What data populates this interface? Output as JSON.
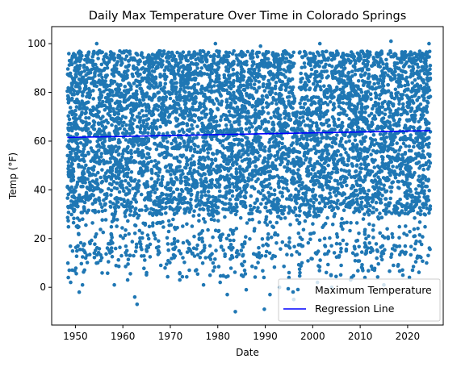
{
  "chart_data": {
    "type": "scatter",
    "title": "Daily Max Temperature Over Time in Colorado Springs",
    "xlabel": "Date",
    "ylabel": "Temp (°F)",
    "xlim": [
      1945,
      2027.5
    ],
    "ylim": [
      -15.5,
      107
    ],
    "x_ticks": [
      1950,
      1960,
      1970,
      1980,
      1990,
      2000,
      2010,
      2020
    ],
    "y_ticks": [
      0,
      20,
      40,
      60,
      80,
      100
    ],
    "grid": false,
    "legend_position": "lower-right",
    "series": [
      {
        "name": "Maximum Temperature",
        "kind": "scatter",
        "color": "#1f77b4",
        "x_range": [
          1948.3,
          2024.8
        ],
        "dense_band": [
          30,
          97
        ],
        "summary": "Daily observations, dense between ~30°F and ~97°F, sparse outliers down to about -10°F and up to about 101°F",
        "outliers": [
          [
            1948.5,
            4
          ],
          [
            1949.0,
            2
          ],
          [
            1950.8,
            -2
          ],
          [
            1951.5,
            1
          ],
          [
            1955.3,
            11
          ],
          [
            1958.2,
            1
          ],
          [
            1961.0,
            3
          ],
          [
            1962.5,
            -4
          ],
          [
            1963.0,
            -7
          ],
          [
            1965.0,
            6
          ],
          [
            1968.0,
            9
          ],
          [
            1972.0,
            3
          ],
          [
            1974.0,
            7
          ],
          [
            1977.0,
            1
          ],
          [
            1979.0,
            10
          ],
          [
            1980.5,
            2
          ],
          [
            1982.0,
            -3
          ],
          [
            1983.7,
            -10
          ],
          [
            1985.0,
            5
          ],
          [
            1986.0,
            -1
          ],
          [
            1988.0,
            8
          ],
          [
            1989.8,
            -9
          ],
          [
            1991.0,
            -3
          ],
          [
            1993.0,
            0
          ],
          [
            1995.0,
            4
          ],
          [
            1996.0,
            -5
          ],
          [
            1997.3,
            6
          ],
          [
            2001.0,
            2
          ],
          [
            2004.0,
            0
          ],
          [
            2006.0,
            9
          ],
          [
            2008.0,
            3
          ],
          [
            2011.0,
            4
          ],
          [
            2013.0,
            7
          ],
          [
            2015.0,
            1
          ],
          [
            2017.0,
            9
          ],
          [
            2019.0,
            5
          ],
          [
            2022.0,
            12
          ],
          [
            2024.0,
            10
          ],
          [
            1954.5,
            100
          ],
          [
            1979.5,
            100
          ],
          [
            1989.0,
            99
          ],
          [
            2001.5,
            100
          ],
          [
            2016.5,
            101
          ],
          [
            2024.5,
            100
          ]
        ]
      },
      {
        "name": "Regression Line",
        "kind": "line",
        "color": "#0000ff",
        "x": [
          1948.3,
          2024.8
        ],
        "y": [
          61.5,
          64.3
        ]
      }
    ]
  }
}
